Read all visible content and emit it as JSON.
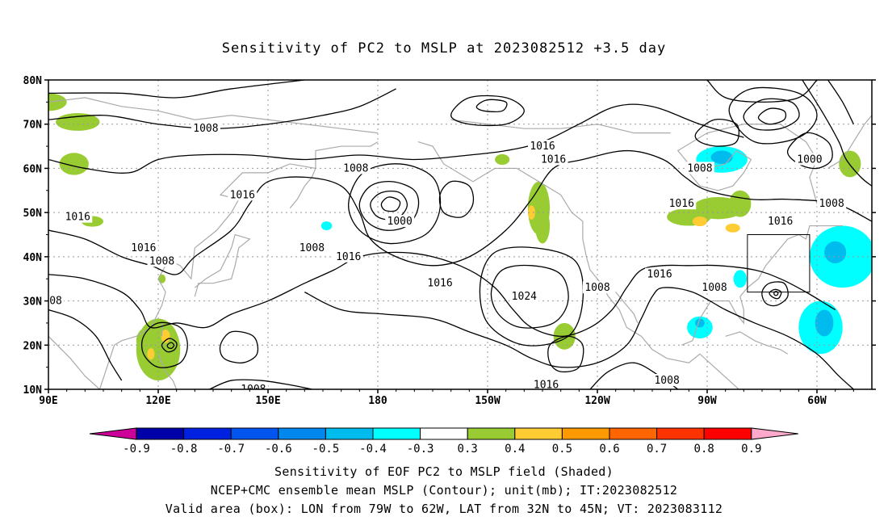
{
  "title": "Sensitivity of PC2 to MSLP at 2023082512 +3.5 day",
  "latitude_labels": [
    "80N",
    "70N",
    "60N",
    "50N",
    "40N",
    "30N",
    "20N",
    "10N"
  ],
  "longitude_labels": [
    "90E",
    "120E",
    "150E",
    "180",
    "150W",
    "120W",
    "90W",
    "60W"
  ],
  "contour_labels": [
    {
      "text": "1008",
      "lon": 133,
      "lat": 69
    },
    {
      "text": "1008",
      "lon": 174,
      "lat": 60
    },
    {
      "text": "1016",
      "lon": 143,
      "lat": 54
    },
    {
      "text": "1016",
      "lon": 98,
      "lat": 49
    },
    {
      "text": "1000",
      "lon": 186,
      "lat": 48
    },
    {
      "text": "1016",
      "lon": 116,
      "lat": 42
    },
    {
      "text": "1008",
      "lon": 121,
      "lat": 39
    },
    {
      "text": "1008",
      "lon": 162,
      "lat": 42
    },
    {
      "text": "1016",
      "lon": 172,
      "lat": 40
    },
    {
      "text": "1016",
      "lon": 225,
      "lat": 65
    },
    {
      "text": "1016",
      "lon": 228,
      "lat": 62
    },
    {
      "text": "1016",
      "lon": 197,
      "lat": 34
    },
    {
      "text": "1024",
      "lon": 220,
      "lat": 31
    },
    {
      "text": "1016",
      "lon": 226,
      "lat": 11
    },
    {
      "text": "1008",
      "lon": 240,
      "lat": 33
    },
    {
      "text": "1016",
      "lon": 257,
      "lat": 36
    },
    {
      "text": "1008",
      "lon": 268,
      "lat": 60
    },
    {
      "text": "1016",
      "lon": 263,
      "lat": 52
    },
    {
      "text": "1008",
      "lon": 272,
      "lat": 33
    },
    {
      "text": "1008",
      "lon": 259,
      "lat": 12
    },
    {
      "text": "1000",
      "lon": 298,
      "lat": 62
    },
    {
      "text": "1008",
      "lon": 304,
      "lat": 52
    },
    {
      "text": "1016",
      "lon": 290,
      "lat": 48
    },
    {
      "text": "1008",
      "lon": 146,
      "lat": 10
    },
    {
      "text": "08",
      "lon": 92,
      "lat": 30
    }
  ],
  "valid_box": {
    "lon_min": 281,
    "lon_max": 298,
    "lat_min": 32,
    "lat_max": 45
  },
  "colorbar": {
    "labels": [
      "-0.9",
      "-0.8",
      "-0.7",
      "-0.6",
      "-0.5",
      "-0.4",
      "-0.3",
      "0.3",
      "0.4",
      "0.5",
      "0.6",
      "0.7",
      "0.8",
      "0.9"
    ],
    "colors": [
      "#0000a8",
      "#0022e0",
      "#0055ee",
      "#0088ee",
      "#00bbee",
      "#00ffff",
      "#ffffff",
      "#99cc33",
      "#ffcc33",
      "#ff9900",
      "#ff6600",
      "#ff3300",
      "#ff0000"
    ],
    "low_cap": "#cc0099",
    "high_cap": "#ffaacc"
  },
  "captions": {
    "line1": "Sensitivity of EOF PC2 to MSLP field (Shaded)",
    "line2": "NCEP+CMC ensemble mean MSLP (Contour); unit(mb); IT:2023082512",
    "line3": "Valid area (box): LON from 79W to 62W, LAT from 32N to 45N; VT: 2023083112"
  }
}
